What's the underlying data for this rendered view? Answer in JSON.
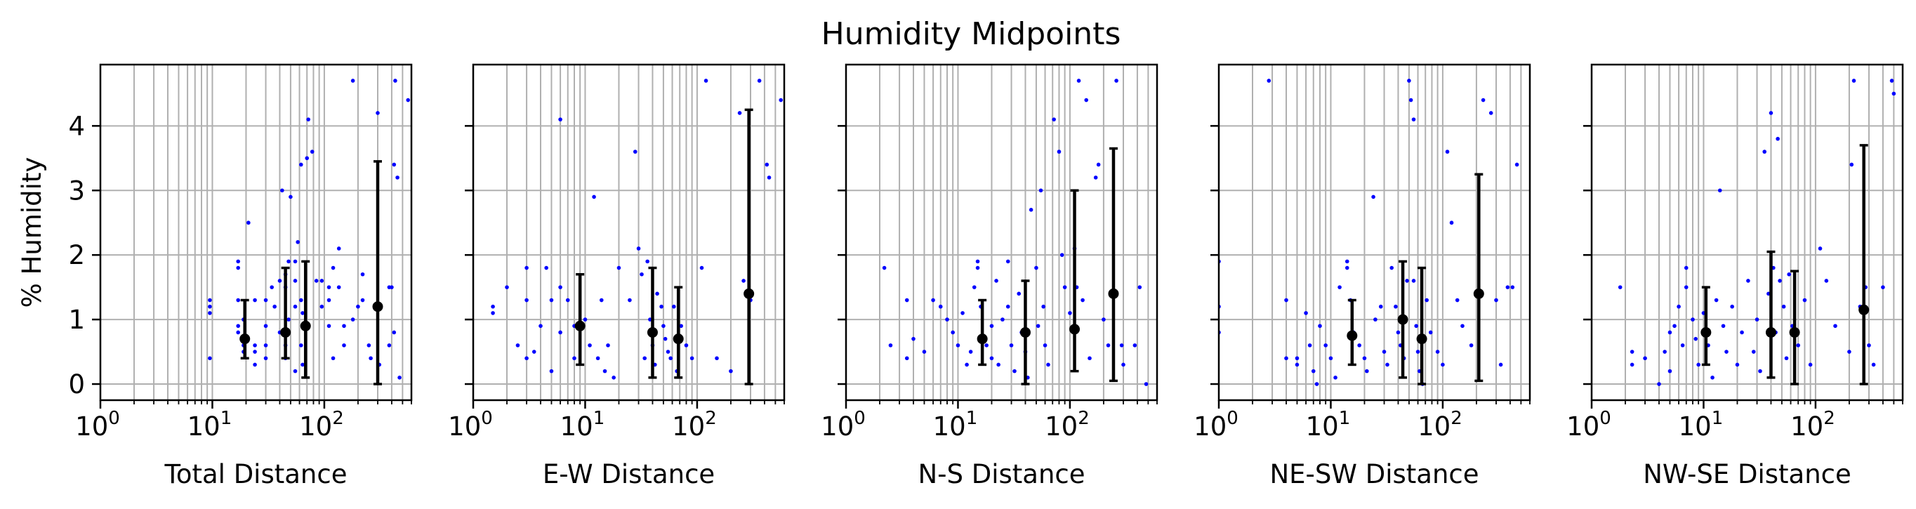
{
  "figure": {
    "title": "Humidity Midpoints"
  },
  "chart_data": [
    {
      "type": "scatter",
      "xlabel": "Total Distance",
      "ylabel": "% Humidity",
      "xscale": "log",
      "xlim": [
        1,
        600
      ],
      "ylim": [
        -0.25,
        4.95
      ],
      "grid": true,
      "x_tick_labels": [
        "10^0",
        "10^1",
        "10^2"
      ],
      "y_tick_labels": [
        "0",
        "1",
        "2",
        "3",
        "4"
      ],
      "point_color": "#0000ff",
      "points": [
        [
          9.5,
          1.3
        ],
        [
          9.5,
          1.2
        ],
        [
          9.5,
          1.1
        ],
        [
          9.5,
          0.4
        ],
        [
          17,
          1.9
        ],
        [
          17,
          1.8
        ],
        [
          17,
          1.3
        ],
        [
          17,
          0.9
        ],
        [
          17,
          0.8
        ],
        [
          19,
          1.0
        ],
        [
          19,
          0.6
        ],
        [
          19,
          0.5
        ],
        [
          21,
          2.5
        ],
        [
          24,
          1.3
        ],
        [
          24,
          0.6
        ],
        [
          24,
          0.5
        ],
        [
          24,
          0.3
        ],
        [
          30,
          1.3
        ],
        [
          30,
          0.9
        ],
        [
          30,
          0.6
        ],
        [
          30,
          0.4
        ],
        [
          34,
          1.5
        ],
        [
          36,
          1.2
        ],
        [
          40,
          1.6
        ],
        [
          40,
          0.8
        ],
        [
          42,
          3.0
        ],
        [
          45,
          1.7
        ],
        [
          45,
          1.5
        ],
        [
          45,
          0.6
        ],
        [
          45,
          0.4
        ],
        [
          48,
          1.9
        ],
        [
          48,
          1.0
        ],
        [
          50,
          2.9
        ],
        [
          55,
          1.9
        ],
        [
          55,
          1.6
        ],
        [
          55,
          1.2
        ],
        [
          55,
          0.2
        ],
        [
          58,
          2.2
        ],
        [
          62,
          3.4
        ],
        [
          62,
          1.3
        ],
        [
          62,
          0.6
        ],
        [
          64,
          1.1
        ],
        [
          64,
          0.3
        ],
        [
          70,
          3.5
        ],
        [
          72,
          4.1
        ],
        [
          78,
          3.6
        ],
        [
          85,
          1.6
        ],
        [
          95,
          1.6
        ],
        [
          95,
          1.2
        ],
        [
          110,
          1.5
        ],
        [
          110,
          1.3
        ],
        [
          110,
          0.9
        ],
        [
          120,
          1.8
        ],
        [
          120,
          0.4
        ],
        [
          135,
          2.1
        ],
        [
          135,
          1.5
        ],
        [
          150,
          0.9
        ],
        [
          150,
          0.6
        ],
        [
          180,
          4.7
        ],
        [
          180,
          1.0
        ],
        [
          200,
          1.2
        ],
        [
          220,
          1.7
        ],
        [
          220,
          1.3
        ],
        [
          250,
          0.6
        ],
        [
          260,
          0.4
        ],
        [
          300,
          4.2
        ],
        [
          310,
          0.3
        ],
        [
          380,
          1.5
        ],
        [
          380,
          0.6
        ],
        [
          400,
          1.5
        ],
        [
          420,
          3.4
        ],
        [
          420,
          0.8
        ],
        [
          430,
          4.7
        ],
        [
          450,
          3.2
        ],
        [
          470,
          0.1
        ],
        [
          560,
          4.4
        ]
      ],
      "midpoints": [
        {
          "x": 19.5,
          "y": 0.7,
          "yerr_low": 0.4,
          "yerr_high": 1.3
        },
        {
          "x": 45,
          "y": 0.8,
          "yerr_low": 0.4,
          "yerr_high": 1.8
        },
        {
          "x": 68,
          "y": 0.9,
          "yerr_low": 0.1,
          "yerr_high": 1.9
        },
        {
          "x": 300,
          "y": 1.2,
          "yerr_low": 0.0,
          "yerr_high": 3.45
        }
      ]
    },
    {
      "type": "scatter",
      "xlabel": "E-W Distance",
      "ylabel": "",
      "xscale": "log",
      "xlim": [
        1,
        600
      ],
      "ylim": [
        -0.25,
        4.95
      ],
      "grid": true,
      "x_tick_labels": [
        "10^0",
        "10^1",
        "10^2"
      ],
      "y_tick_labels": [],
      "point_color": "#0000ff",
      "points": [
        [
          1.5,
          1.2
        ],
        [
          1.5,
          1.1
        ],
        [
          2.0,
          1.5
        ],
        [
          2.5,
          0.6
        ],
        [
          3.0,
          1.8
        ],
        [
          3.0,
          1.3
        ],
        [
          3.0,
          0.4
        ],
        [
          3.5,
          0.5
        ],
        [
          4.0,
          0.9
        ],
        [
          4.5,
          1.8
        ],
        [
          5.0,
          1.3
        ],
        [
          5.0,
          0.2
        ],
        [
          6.0,
          4.1
        ],
        [
          6.0,
          1.5
        ],
        [
          6.0,
          0.8
        ],
        [
          7.0,
          1.3
        ],
        [
          8.0,
          0.9
        ],
        [
          8.0,
          0.4
        ],
        [
          10,
          1.0
        ],
        [
          11,
          0.6
        ],
        [
          12,
          2.9
        ],
        [
          13,
          0.4
        ],
        [
          14,
          1.3
        ],
        [
          15,
          0.2
        ],
        [
          16,
          0.6
        ],
        [
          18,
          0.1
        ],
        [
          20,
          1.8
        ],
        [
          25,
          1.3
        ],
        [
          28,
          3.6
        ],
        [
          30,
          2.1
        ],
        [
          32,
          1.7
        ],
        [
          34,
          0.4
        ],
        [
          36,
          1.9
        ],
        [
          38,
          1.0
        ],
        [
          40,
          0.6
        ],
        [
          42,
          0.3
        ],
        [
          44,
          1.4
        ],
        [
          48,
          1.2
        ],
        [
          50,
          0.9
        ],
        [
          52,
          0.7
        ],
        [
          55,
          0.5
        ],
        [
          58,
          0.4
        ],
        [
          62,
          1.2
        ],
        [
          66,
          0.2
        ],
        [
          72,
          0.9
        ],
        [
          80,
          0.6
        ],
        [
          90,
          0.4
        ],
        [
          110,
          1.8
        ],
        [
          120,
          4.7
        ],
        [
          150,
          0.4
        ],
        [
          200,
          0.2
        ],
        [
          240,
          4.2
        ],
        [
          260,
          1.6
        ],
        [
          300,
          1.3
        ],
        [
          360,
          4.7
        ],
        [
          420,
          3.4
        ],
        [
          440,
          3.2
        ],
        [
          560,
          4.4
        ]
      ],
      "midpoints": [
        {
          "x": 9.0,
          "y": 0.9,
          "yerr_low": 0.3,
          "yerr_high": 1.7
        },
        {
          "x": 40,
          "y": 0.8,
          "yerr_low": 0.1,
          "yerr_high": 1.8
        },
        {
          "x": 68,
          "y": 0.7,
          "yerr_low": 0.1,
          "yerr_high": 1.5
        },
        {
          "x": 290,
          "y": 1.4,
          "yerr_low": 0.0,
          "yerr_high": 4.25
        }
      ]
    },
    {
      "type": "scatter",
      "xlabel": "N-S Distance",
      "ylabel": "",
      "xscale": "log",
      "xlim": [
        1,
        600
      ],
      "ylim": [
        -0.25,
        4.95
      ],
      "grid": true,
      "x_tick_labels": [
        "10^0",
        "10^1",
        "10^2"
      ],
      "y_tick_labels": [],
      "point_color": "#0000ff",
      "points": [
        [
          2.2,
          1.8
        ],
        [
          2.5,
          0.6
        ],
        [
          3.5,
          1.3
        ],
        [
          3.5,
          0.4
        ],
        [
          4.0,
          0.7
        ],
        [
          5.0,
          0.5
        ],
        [
          6.0,
          1.3
        ],
        [
          7.0,
          1.2
        ],
        [
          8.0,
          1.0
        ],
        [
          9.0,
          0.8
        ],
        [
          10,
          0.6
        ],
        [
          11,
          1.1
        ],
        [
          12,
          0.3
        ],
        [
          13,
          0.5
        ],
        [
          14,
          1.5
        ],
        [
          15,
          1.9
        ],
        [
          15,
          1.8
        ],
        [
          16,
          1.2
        ],
        [
          18,
          0.6
        ],
        [
          20,
          0.9
        ],
        [
          20,
          0.4
        ],
        [
          22,
          1.6
        ],
        [
          23,
          0.3
        ],
        [
          25,
          1.0
        ],
        [
          28,
          1.9
        ],
        [
          28,
          1.2
        ],
        [
          30,
          0.6
        ],
        [
          32,
          0.2
        ],
        [
          35,
          1.4
        ],
        [
          37,
          0.8
        ],
        [
          40,
          0.5
        ],
        [
          42,
          0.1
        ],
        [
          45,
          2.7
        ],
        [
          50,
          1.8
        ],
        [
          52,
          0.9
        ],
        [
          55,
          3.0
        ],
        [
          58,
          1.2
        ],
        [
          60,
          0.6
        ],
        [
          64,
          0.3
        ],
        [
          72,
          4.1
        ],
        [
          80,
          3.6
        ],
        [
          85,
          2.0
        ],
        [
          90,
          1.5
        ],
        [
          100,
          1.1
        ],
        [
          110,
          2.1
        ],
        [
          115,
          1.5
        ],
        [
          120,
          4.7
        ],
        [
          130,
          1.3
        ],
        [
          140,
          4.4
        ],
        [
          150,
          0.4
        ],
        [
          170,
          3.2
        ],
        [
          180,
          3.4
        ],
        [
          200,
          1.0
        ],
        [
          220,
          0.6
        ],
        [
          260,
          4.7
        ],
        [
          290,
          0.6
        ],
        [
          300,
          0.3
        ],
        [
          380,
          0.6
        ],
        [
          420,
          1.5
        ],
        [
          480,
          0.0
        ]
      ],
      "midpoints": [
        {
          "x": 16.5,
          "y": 0.7,
          "yerr_low": 0.3,
          "yerr_high": 1.3
        },
        {
          "x": 40,
          "y": 0.8,
          "yerr_low": 0.0,
          "yerr_high": 1.6
        },
        {
          "x": 110,
          "y": 0.85,
          "yerr_low": 0.2,
          "yerr_high": 3.0
        },
        {
          "x": 245,
          "y": 1.4,
          "yerr_low": 0.05,
          "yerr_high": 3.65
        }
      ]
    },
    {
      "type": "scatter",
      "xlabel": "NE-SW Distance",
      "ylabel": "",
      "xscale": "log",
      "xlim": [
        1,
        600
      ],
      "ylim": [
        -0.25,
        4.95
      ],
      "grid": true,
      "x_tick_labels": [
        "10^0",
        "10^1",
        "10^2"
      ],
      "y_tick_labels": [],
      "point_color": "#0000ff",
      "points": [
        [
          1.0,
          1.9
        ],
        [
          1.0,
          1.2
        ],
        [
          1.0,
          0.8
        ],
        [
          2.8,
          4.7
        ],
        [
          4.0,
          1.3
        ],
        [
          4.0,
          0.4
        ],
        [
          5.0,
          0.4
        ],
        [
          5.0,
          0.3
        ],
        [
          6.0,
          1.1
        ],
        [
          6.5,
          0.6
        ],
        [
          7.0,
          0.2
        ],
        [
          7.5,
          0.0
        ],
        [
          8.0,
          0.9
        ],
        [
          9.0,
          0.6
        ],
        [
          10,
          0.4
        ],
        [
          11,
          0.1
        ],
        [
          12,
          1.5
        ],
        [
          14,
          1.9
        ],
        [
          14,
          1.8
        ],
        [
          15,
          1.3
        ],
        [
          16,
          0.8
        ],
        [
          18,
          0.6
        ],
        [
          20,
          0.4
        ],
        [
          21,
          0.2
        ],
        [
          24,
          2.9
        ],
        [
          25,
          1.0
        ],
        [
          28,
          1.2
        ],
        [
          30,
          0.5
        ],
        [
          32,
          0.3
        ],
        [
          35,
          1.8
        ],
        [
          38,
          1.2
        ],
        [
          40,
          0.8
        ],
        [
          42,
          0.6
        ],
        [
          45,
          0.4
        ],
        [
          48,
          1.6
        ],
        [
          50,
          4.7
        ],
        [
          52,
          4.4
        ],
        [
          55,
          4.1
        ],
        [
          55,
          1.6
        ],
        [
          58,
          0.9
        ],
        [
          60,
          0.5
        ],
        [
          62,
          0.2
        ],
        [
          66,
          0.0
        ],
        [
          72,
          1.3
        ],
        [
          78,
          0.8
        ],
        [
          90,
          0.5
        ],
        [
          100,
          0.3
        ],
        [
          110,
          3.6
        ],
        [
          120,
          2.5
        ],
        [
          135,
          1.3
        ],
        [
          150,
          0.9
        ],
        [
          180,
          0.6
        ],
        [
          230,
          4.4
        ],
        [
          270,
          4.2
        ],
        [
          300,
          1.3
        ],
        [
          330,
          0.3
        ],
        [
          380,
          1.5
        ],
        [
          420,
          1.5
        ],
        [
          460,
          3.4
        ]
      ],
      "midpoints": [
        {
          "x": 15.5,
          "y": 0.75,
          "yerr_low": 0.3,
          "yerr_high": 1.3
        },
        {
          "x": 44,
          "y": 1.0,
          "yerr_low": 0.1,
          "yerr_high": 1.9
        },
        {
          "x": 65,
          "y": 0.7,
          "yerr_low": 0.0,
          "yerr_high": 1.8
        },
        {
          "x": 210,
          "y": 1.4,
          "yerr_low": 0.05,
          "yerr_high": 3.25
        }
      ]
    },
    {
      "type": "scatter",
      "xlabel": "NW-SE Distance",
      "ylabel": "",
      "xscale": "log",
      "xlim": [
        1,
        600
      ],
      "ylim": [
        -0.25,
        4.95
      ],
      "grid": true,
      "x_tick_labels": [
        "10^0",
        "10^1",
        "10^2"
      ],
      "y_tick_labels": [],
      "point_color": "#0000ff",
      "points": [
        [
          1.8,
          1.5
        ],
        [
          2.3,
          0.5
        ],
        [
          2.3,
          0.3
        ],
        [
          3.0,
          0.4
        ],
        [
          4.0,
          0.0
        ],
        [
          4.5,
          0.5
        ],
        [
          5.0,
          0.8
        ],
        [
          5.0,
          0.2
        ],
        [
          5.5,
          0.9
        ],
        [
          6.0,
          1.2
        ],
        [
          6.5,
          0.6
        ],
        [
          7.0,
          1.8
        ],
        [
          7.0,
          1.5
        ],
        [
          8.0,
          1.0
        ],
        [
          8.5,
          0.7
        ],
        [
          9.0,
          0.3
        ],
        [
          10,
          1.1
        ],
        [
          11,
          0.6
        ],
        [
          12,
          0.1
        ],
        [
          13,
          1.3
        ],
        [
          14,
          3.0
        ],
        [
          15,
          0.9
        ],
        [
          16,
          0.5
        ],
        [
          18,
          1.2
        ],
        [
          20,
          0.3
        ],
        [
          22,
          0.8
        ],
        [
          25,
          1.6
        ],
        [
          28,
          0.5
        ],
        [
          30,
          1.0
        ],
        [
          32,
          0.2
        ],
        [
          35,
          3.6
        ],
        [
          38,
          1.4
        ],
        [
          40,
          4.2
        ],
        [
          42,
          1.8
        ],
        [
          44,
          0.8
        ],
        [
          46,
          3.8
        ],
        [
          48,
          1.6
        ],
        [
          52,
          1.2
        ],
        [
          55,
          0.4
        ],
        [
          58,
          1.7
        ],
        [
          62,
          0.9
        ],
        [
          70,
          0.6
        ],
        [
          80,
          1.3
        ],
        [
          90,
          0.3
        ],
        [
          110,
          2.1
        ],
        [
          125,
          1.6
        ],
        [
          150,
          0.9
        ],
        [
          200,
          0.5
        ],
        [
          210,
          3.4
        ],
        [
          220,
          4.7
        ],
        [
          250,
          1.2
        ],
        [
          280,
          1.5
        ],
        [
          300,
          0.6
        ],
        [
          330,
          0.3
        ],
        [
          400,
          1.5
        ],
        [
          480,
          4.7
        ],
        [
          500,
          4.5
        ]
      ],
      "midpoints": [
        {
          "x": 10.5,
          "y": 0.8,
          "yerr_low": 0.3,
          "yerr_high": 1.5
        },
        {
          "x": 40,
          "y": 0.8,
          "yerr_low": 0.1,
          "yerr_high": 2.05
        },
        {
          "x": 65,
          "y": 0.8,
          "yerr_low": 0.0,
          "yerr_high": 1.75
        },
        {
          "x": 270,
          "y": 1.15,
          "yerr_low": 0.0,
          "yerr_high": 3.7
        }
      ]
    }
  ]
}
